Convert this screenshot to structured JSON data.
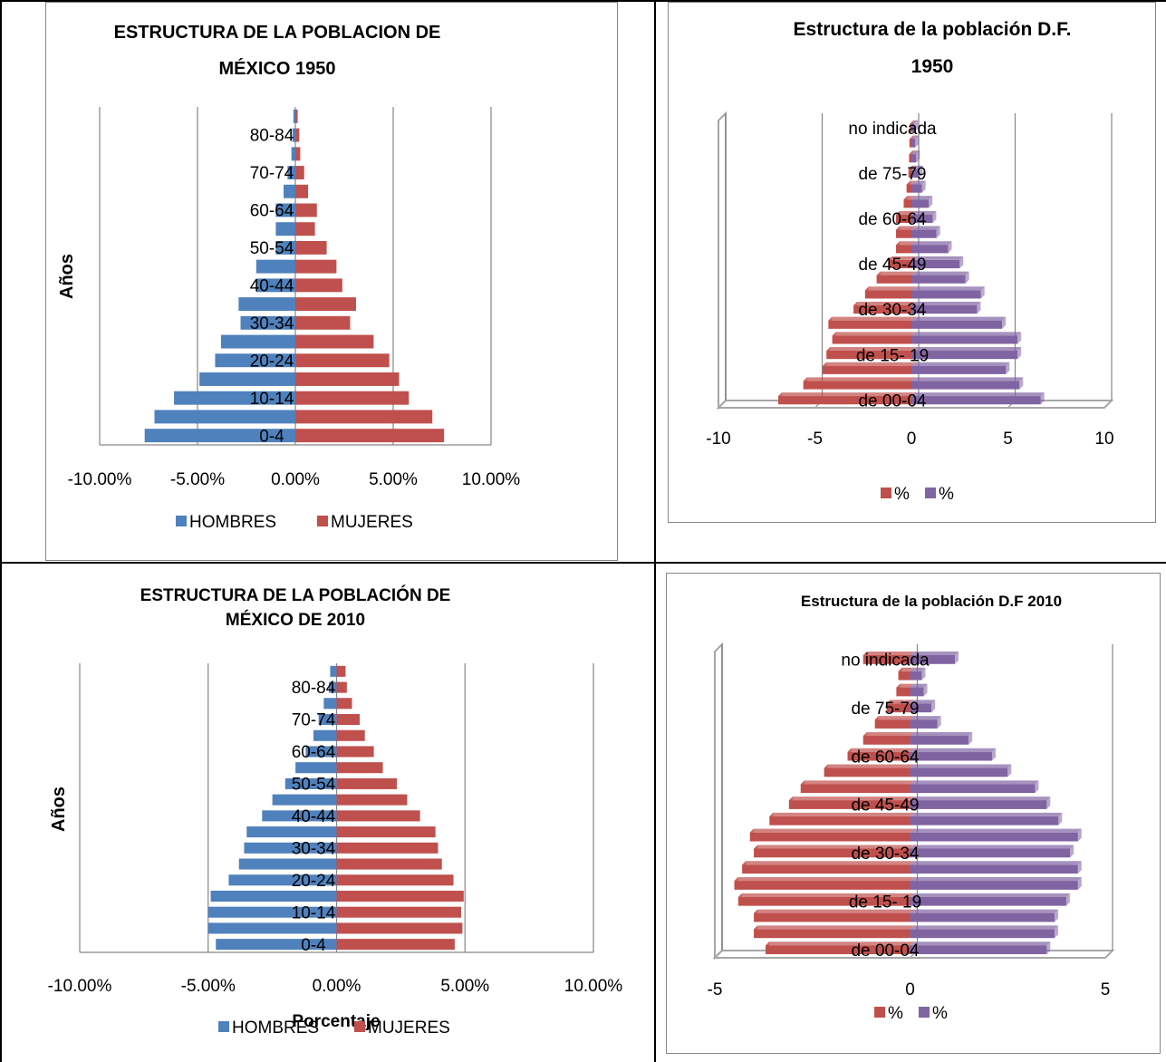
{
  "chart_data": [
    {
      "type": "bar",
      "title": "ESTRUCTURA DE LA POBLACION DE\nMÉXICO 1950",
      "ylabel": "Años",
      "xlabel": "",
      "orientation": "horizontal-pyramid",
      "xlim": [
        -10,
        10
      ],
      "x_ticks": [
        "-10.00%",
        "-5.00%",
        "0.00%",
        "5.00%",
        "10.00%"
      ],
      "categories": [
        "0-4",
        "5-9",
        "10-14",
        "15-19",
        "20-24",
        "25-29",
        "30-34",
        "35-39",
        "40-44",
        "45-49",
        "50-54",
        "55-59",
        "60-64",
        "65-69",
        "70-74",
        "75-79",
        "80-84",
        "85+"
      ],
      "category_labels_shown": [
        "0-4",
        "10-14",
        "20-24",
        "30-34",
        "40-44",
        "50-54",
        "60-64",
        "70-74",
        "80-84"
      ],
      "series": [
        {
          "name": "HOMBRES",
          "color": "#4f81bd",
          "values": [
            -7.7,
            -7.2,
            -6.2,
            -4.9,
            -4.1,
            -3.8,
            -2.8,
            -2.9,
            -2.0,
            -2.0,
            -1.0,
            -1.0,
            -1.0,
            -0.6,
            -0.4,
            -0.2,
            -0.15,
            -0.1
          ]
        },
        {
          "name": "MUJERES",
          "color": "#c0504d",
          "values": [
            7.6,
            7.0,
            5.8,
            5.3,
            4.8,
            4.0,
            2.8,
            3.1,
            2.4,
            2.1,
            1.6,
            1.0,
            1.1,
            0.65,
            0.45,
            0.25,
            0.2,
            0.12
          ]
        }
      ],
      "legend": "bottom",
      "grid": true
    },
    {
      "type": "bar",
      "title": "Estructura de la población D.F.\n1950",
      "ylabel": "",
      "xlabel": "",
      "orientation": "horizontal-pyramid-3d",
      "xlim": [
        -10,
        10
      ],
      "x_ticks": [
        "-10",
        "-5",
        "0",
        "5",
        "10"
      ],
      "categories": [
        "de 00-04",
        "de 05-09",
        "de 10-14",
        "de 15- 19",
        "de 20-24",
        "de 25-29",
        "de 30-34",
        "de 35-39",
        "de 40-44",
        "de 45-49",
        "de 50-54",
        "de 55-59",
        "de 60-64",
        "de 65-69",
        "de 70-74",
        "de 75-79",
        "de 80-84",
        "de 85+",
        "no indicada"
      ],
      "category_labels_shown": [
        "de 00-04",
        "de 15- 19",
        "de 30-34",
        "de 45-49",
        "de 60-64",
        "de 75-79",
        "no indicada"
      ],
      "series": [
        {
          "name": "%",
          "color": "#c0504d",
          "values": [
            -6.9,
            -5.6,
            -4.6,
            -4.4,
            -4.1,
            -4.3,
            -3.0,
            -2.4,
            -1.8,
            -1.2,
            -0.8,
            -0.8,
            -0.8,
            -0.4,
            -0.25,
            -0.15,
            -0.12,
            -0.1,
            -0.08
          ]
        },
        {
          "name": "%",
          "color": "#8064a2",
          "values": [
            6.7,
            5.6,
            4.9,
            5.5,
            5.5,
            4.7,
            3.4,
            3.6,
            2.8,
            2.5,
            1.9,
            1.3,
            1.1,
            0.9,
            0.55,
            0.4,
            0.25,
            0.2,
            0.15
          ]
        }
      ],
      "legend": "bottom",
      "grid": true
    },
    {
      "type": "bar",
      "title": "ESTRUCTURA DE LA POBLACIÓN DE\nMÉXICO DE 2010",
      "ylabel": "Años",
      "xlabel": "Porcentaje",
      "orientation": "horizontal-pyramid",
      "xlim": [
        -10,
        10
      ],
      "x_ticks": [
        "-10.00%",
        "-5.00%",
        "0.00%",
        "5.00%",
        "10.00%"
      ],
      "categories": [
        "0-4",
        "5-9",
        "10-14",
        "15-19",
        "20-24",
        "25-29",
        "30-34",
        "35-39",
        "40-44",
        "45-49",
        "50-54",
        "55-59",
        "60-64",
        "65-69",
        "70-74",
        "75-79",
        "80-84",
        "85+"
      ],
      "category_labels_shown": [
        "0-4",
        "10-14",
        "20-24",
        "30-34",
        "40-44",
        "50-54",
        "60-64",
        "70-74",
        "80-84"
      ],
      "series": [
        {
          "name": "HOMBRES",
          "color": "#4f81bd",
          "values": [
            -4.7,
            -5.0,
            -5.0,
            -4.9,
            -4.2,
            -3.8,
            -3.6,
            -3.5,
            -2.9,
            -2.5,
            -2.0,
            -1.6,
            -1.2,
            -0.9,
            -0.7,
            -0.5,
            -0.3,
            -0.25
          ]
        },
        {
          "name": "MUJERES",
          "color": "#c0504d",
          "values": [
            4.6,
            4.9,
            4.85,
            4.95,
            4.55,
            4.1,
            3.95,
            3.85,
            3.25,
            2.75,
            2.35,
            1.8,
            1.45,
            1.1,
            0.9,
            0.6,
            0.4,
            0.35
          ]
        }
      ],
      "legend": "bottom",
      "grid": true
    },
    {
      "type": "bar",
      "title": "Estructura de la población D.F 2010",
      "ylabel": "",
      "xlabel": "",
      "orientation": "horizontal-pyramid-3d",
      "xlim": [
        -5,
        5
      ],
      "x_ticks": [
        "-5",
        "0",
        "5"
      ],
      "categories": [
        "de 00-04",
        "de 05-09",
        "de 10-14",
        "de 15- 19",
        "de 20-24",
        "de 25-29",
        "de 30-34",
        "de 35-39",
        "de 40-44",
        "de 45-49",
        "de 50-54",
        "de 55-59",
        "de 60-64",
        "de 65-69",
        "de 70-74",
        "de 75-79",
        "de 80-84",
        "de 85+",
        "no indicada"
      ],
      "category_labels_shown": [
        "de 00-04",
        "de 15- 19",
        "de 30-34",
        "de 45-49",
        "de 60-64",
        "de 75-79",
        "no indicada"
      ],
      "series": [
        {
          "name": "%",
          "color": "#c0504d",
          "values": [
            -3.7,
            -4.0,
            -4.0,
            -4.4,
            -4.5,
            -4.3,
            -4.0,
            -4.1,
            -3.6,
            -3.1,
            -2.8,
            -2.2,
            -1.6,
            -1.2,
            -0.9,
            -0.6,
            -0.35,
            -0.3,
            -1.2
          ]
        },
        {
          "name": "%",
          "color": "#8064a2",
          "values": [
            3.5,
            3.7,
            3.7,
            4.0,
            4.3,
            4.3,
            4.1,
            4.3,
            3.8,
            3.5,
            3.2,
            2.5,
            2.1,
            1.5,
            0.7,
            0.55,
            0.35,
            0.3,
            1.15
          ]
        }
      ],
      "legend": "bottom",
      "grid": true
    }
  ]
}
